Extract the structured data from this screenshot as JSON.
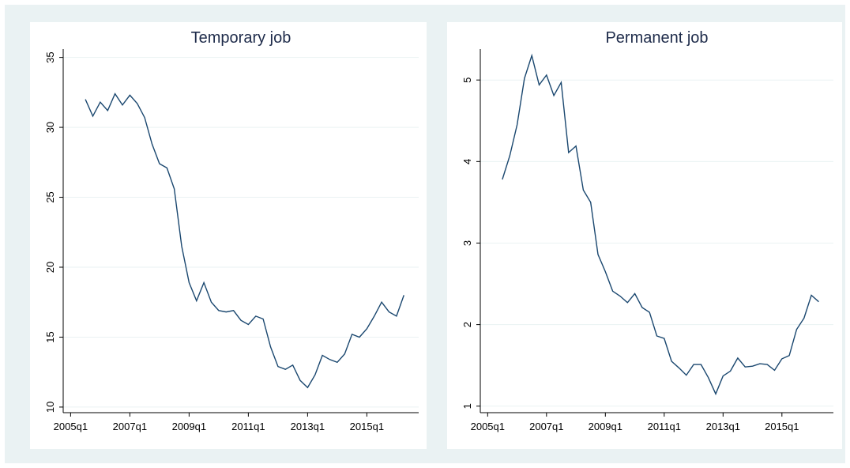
{
  "chart_data": [
    {
      "type": "line",
      "title": "Temporary job",
      "x": [
        "2005q3",
        "2005q4",
        "2006q1",
        "2006q2",
        "2006q3",
        "2006q4",
        "2007q1",
        "2007q2",
        "2007q3",
        "2007q4",
        "2008q1",
        "2008q2",
        "2008q3",
        "2008q4",
        "2009q1",
        "2009q2",
        "2009q3",
        "2009q4",
        "2010q1",
        "2010q2",
        "2010q3",
        "2010q4",
        "2011q1",
        "2011q2",
        "2011q3",
        "2011q4",
        "2012q1",
        "2012q2",
        "2012q3",
        "2012q4",
        "2013q1",
        "2013q2",
        "2013q3",
        "2013q4",
        "2014q1",
        "2014q2",
        "2014q3",
        "2014q4",
        "2015q1",
        "2015q2",
        "2015q3",
        "2015q4",
        "2016q1",
        "2016q2"
      ],
      "values": [
        32.0,
        30.8,
        31.8,
        31.2,
        32.4,
        31.6,
        32.3,
        31.7,
        30.7,
        28.8,
        27.4,
        27.1,
        25.6,
        21.5,
        18.9,
        17.6,
        18.9,
        17.5,
        16.9,
        16.8,
        16.9,
        16.2,
        15.9,
        16.5,
        16.3,
        14.3,
        12.9,
        12.7,
        13.0,
        11.9,
        11.4,
        12.3,
        13.7,
        13.4,
        13.2,
        13.8,
        15.2,
        15.0,
        15.6,
        16.5,
        17.5,
        16.8,
        16.5,
        18.0
      ],
      "color": "#1a476f",
      "xlim": [
        "2004q4",
        "2016q4"
      ],
      "xticks": [
        "2005q1",
        "2007q1",
        "2009q1",
        "2011q1",
        "2013q1",
        "2015q1"
      ],
      "ylim": [
        9.6,
        35.6
      ],
      "yticks": [
        10,
        15,
        20,
        25,
        30,
        35
      ],
      "grid": true
    },
    {
      "type": "line",
      "title": "Permanent job",
      "x": [
        "2005q3",
        "2005q4",
        "2006q1",
        "2006q2",
        "2006q3",
        "2006q4",
        "2007q1",
        "2007q2",
        "2007q3",
        "2007q4",
        "2008q1",
        "2008q2",
        "2008q3",
        "2008q4",
        "2009q1",
        "2009q2",
        "2009q3",
        "2009q4",
        "2010q1",
        "2010q2",
        "2010q3",
        "2010q4",
        "2011q1",
        "2011q2",
        "2011q3",
        "2011q4",
        "2012q1",
        "2012q2",
        "2012q3",
        "2012q4",
        "2013q1",
        "2013q2",
        "2013q3",
        "2013q4",
        "2014q1",
        "2014q2",
        "2014q3",
        "2014q4",
        "2015q1",
        "2015q2",
        "2015q3",
        "2015q4",
        "2016q1",
        "2016q2"
      ],
      "values": [
        3.78,
        4.07,
        4.45,
        5.02,
        5.3,
        4.94,
        5.06,
        4.81,
        4.97,
        4.11,
        4.19,
        3.65,
        3.5,
        2.86,
        2.65,
        2.41,
        2.35,
        2.27,
        2.38,
        2.21,
        2.15,
        1.86,
        1.83,
        1.55,
        1.47,
        1.38,
        1.51,
        1.51,
        1.35,
        1.15,
        1.37,
        1.43,
        1.59,
        1.48,
        1.49,
        1.52,
        1.51,
        1.44,
        1.58,
        1.62,
        1.94,
        2.08,
        2.36,
        2.28
      ],
      "color": "#1a476f",
      "xlim": [
        "2004q4",
        "2016q4"
      ],
      "xticks": [
        "2005q1",
        "2007q1",
        "2009q1",
        "2011q1",
        "2013q1",
        "2015q1"
      ],
      "ylim": [
        0.92,
        5.38
      ],
      "yticks": [
        1,
        2,
        3,
        4,
        5
      ],
      "grid": true
    }
  ]
}
